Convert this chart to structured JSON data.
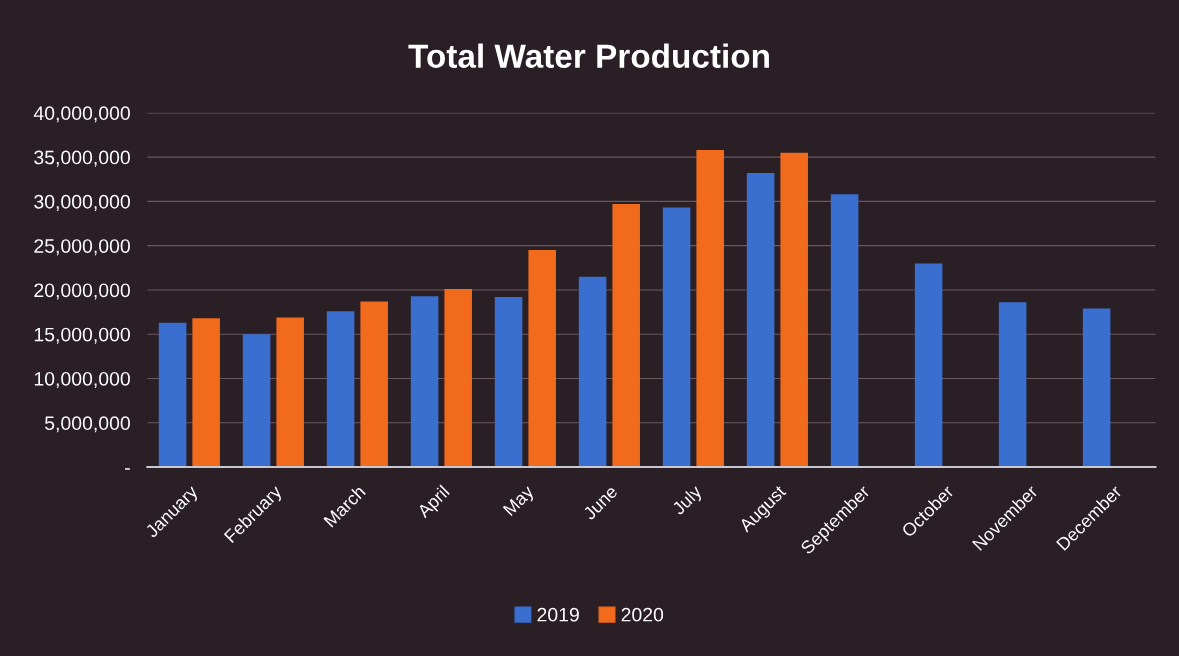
{
  "chart_data": {
    "type": "bar",
    "title": "Total Water Production",
    "categories": [
      "January",
      "February",
      "March",
      "April",
      "May",
      "June",
      "July",
      "August",
      "September",
      "October",
      "November",
      "December"
    ],
    "series": [
      {
        "name": "2019",
        "color": "#3a6fd0",
        "values": [
          16300000,
          15000000,
          17600000,
          19300000,
          19200000,
          21500000,
          29300000,
          33200000,
          30800000,
          23000000,
          18600000,
          17900000
        ]
      },
      {
        "name": "2020",
        "color": "#f26a1b",
        "values": [
          16800000,
          16900000,
          18700000,
          20100000,
          24500000,
          29700000,
          35800000,
          35500000,
          null,
          null,
          null,
          null
        ]
      }
    ],
    "ylim": [
      0,
      40000000
    ],
    "yticks": [
      {
        "value": 0,
        "label": "-"
      },
      {
        "value": 5000000,
        "label": "5,000,000"
      },
      {
        "value": 10000000,
        "label": "10,000,000"
      },
      {
        "value": 15000000,
        "label": "15,000,000"
      },
      {
        "value": 20000000,
        "label": "20,000,000"
      },
      {
        "value": 25000000,
        "label": "25,000,000"
      },
      {
        "value": 30000000,
        "label": "30,000,000"
      },
      {
        "value": 35000000,
        "label": "35,000,000"
      },
      {
        "value": 40000000,
        "label": "40,000,000"
      }
    ],
    "grid": "y",
    "legend": "bottom"
  }
}
